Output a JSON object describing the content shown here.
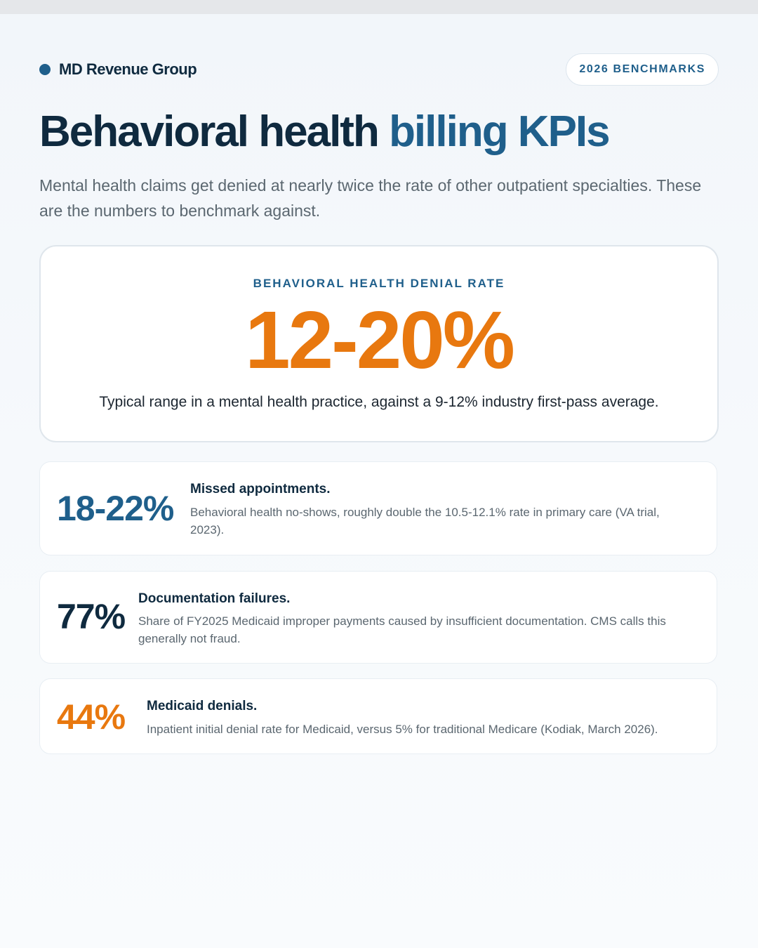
{
  "brand": {
    "name": "MD Revenue Group",
    "badge": "2026 BENCHMARKS"
  },
  "title": {
    "part1": "Behavioral health",
    "part2": "billing KPIs"
  },
  "subtitle": "Mental health claims get denied at nearly twice the rate of other outpatient specialties. These are the numbers to benchmark against.",
  "hero": {
    "label": "BEHAVIORAL HEALTH DENIAL RATE",
    "value": "12-20%",
    "description": "Typical range in a mental health practice, against a 9-12% industry first-pass average."
  },
  "stats": [
    {
      "value": "18-22%",
      "title": "Missed appointments.",
      "description": "Behavioral health no-shows, roughly double the 10.5-12.1% rate in primary care (VA trial, 2023)."
    },
    {
      "value": "77%",
      "title": "Documentation failures.",
      "description": "Share of FY2025 Medicaid improper payments caused by insufficient documentation. CMS calls this generally not fraud."
    },
    {
      "value": "44%",
      "title": "Medicaid denials.",
      "description": "Inpatient initial denial rate for Medicaid, versus 5% for traditional Medicare (Kodiak, March 2026)."
    }
  ],
  "colors": {
    "navy": "#0f2a3f",
    "blue": "#1f5f8b",
    "orange": "#e8780f"
  }
}
